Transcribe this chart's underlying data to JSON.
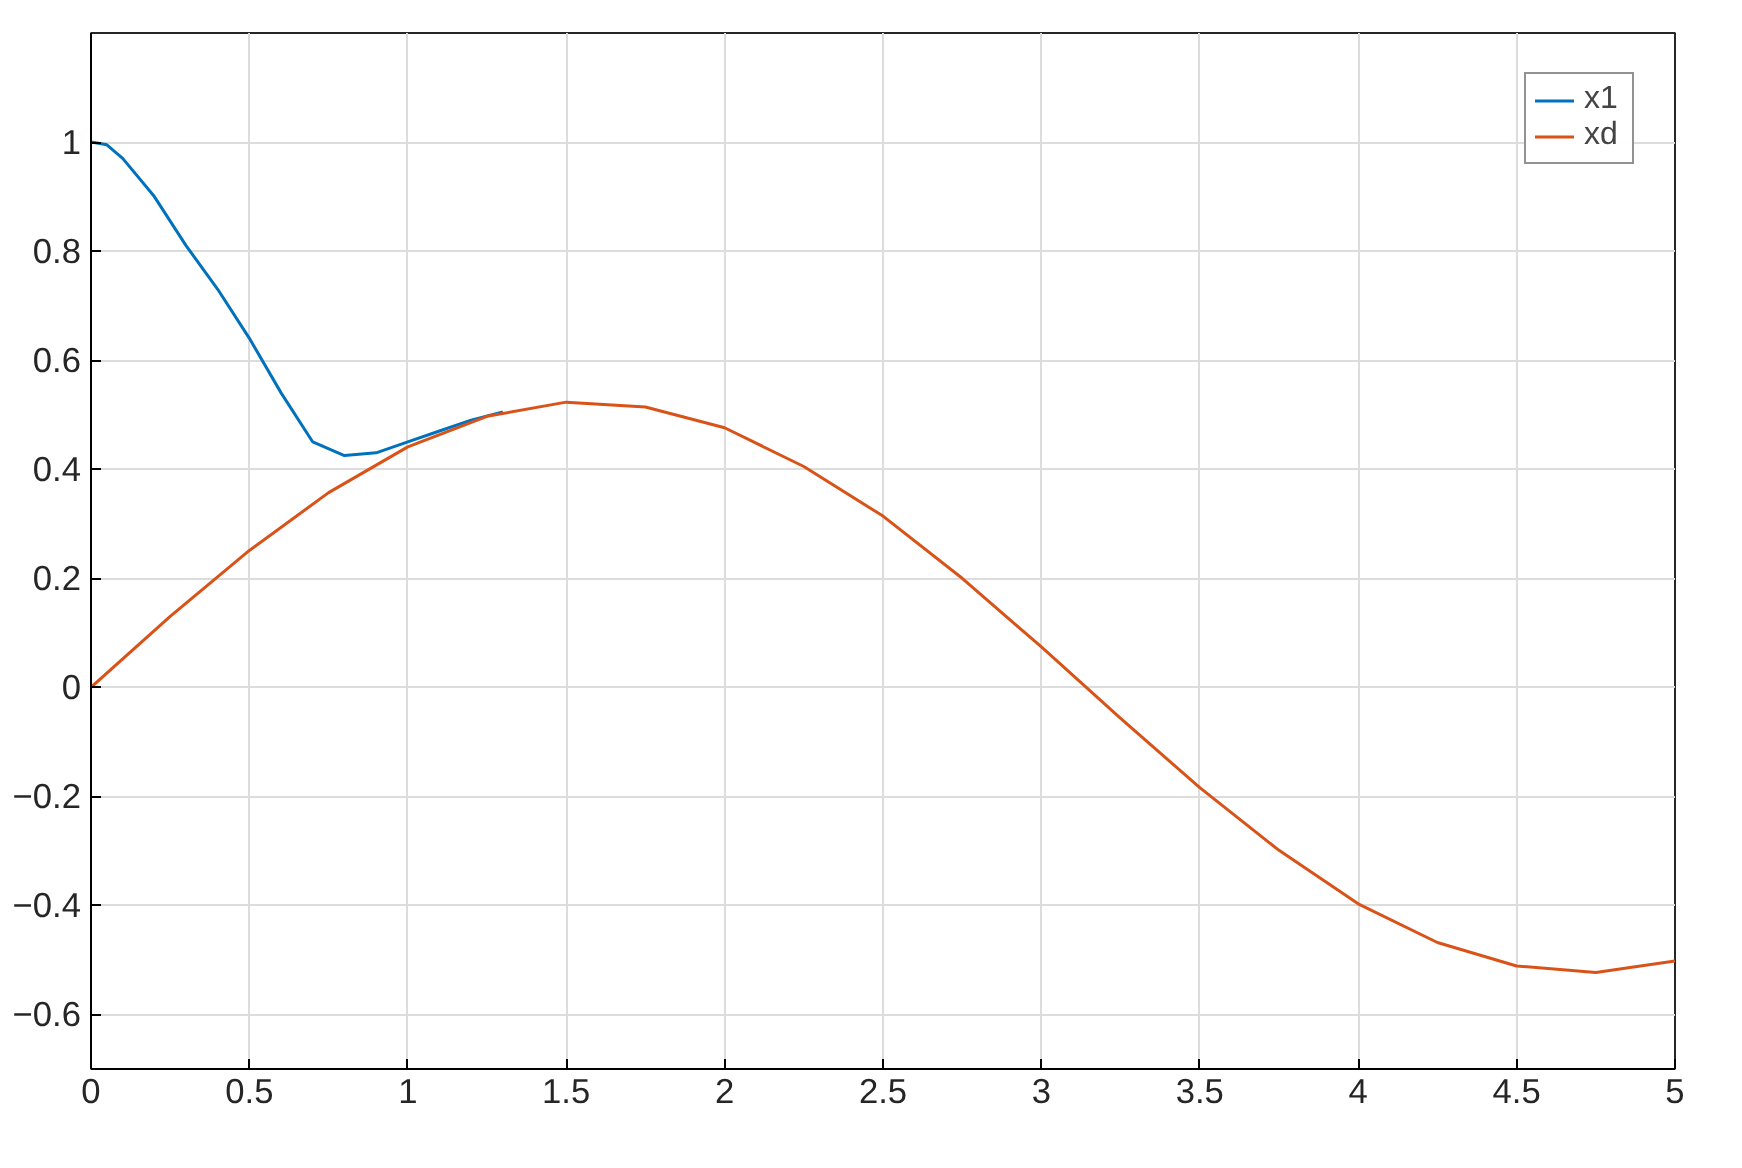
{
  "chart_data": {
    "type": "line",
    "xlim": [
      0,
      5
    ],
    "ylim": [
      -0.7,
      1.2
    ],
    "xticks": [
      0,
      0.5,
      1,
      1.5,
      2,
      2.5,
      3,
      3.5,
      4,
      4.5,
      5
    ],
    "yticks": [
      -0.6,
      -0.4,
      -0.2,
      0,
      0.2,
      0.4,
      0.6,
      0.8,
      1
    ],
    "grid": true,
    "legend": "top right",
    "line_style": "solid",
    "marker": "none",
    "series": [
      {
        "name": "x1",
        "color": "#0072bd",
        "x": [
          0,
          0.05,
          0.1,
          0.2,
          0.3,
          0.4,
          0.5,
          0.6,
          0.7,
          0.8,
          0.9,
          1.0,
          1.1,
          1.2,
          1.3
        ],
        "values": [
          1,
          0.995,
          0.97,
          0.9,
          0.81,
          0.73,
          0.64,
          0.54,
          0.45,
          0.425,
          0.43,
          0.45,
          0.47,
          0.49,
          0.505
        ]
      },
      {
        "name": "xd",
        "color": "#d95319",
        "x": [
          0,
          0.25,
          0.5,
          0.75,
          1,
          1.25,
          1.5,
          1.75,
          2,
          2.25,
          2.5,
          2.75,
          3,
          3.25,
          3.5,
          3.75,
          4,
          4.25,
          4.5,
          4.75,
          5
        ],
        "values": [
          0,
          0.13,
          0.251,
          0.357,
          0.441,
          0.497,
          0.523,
          0.514,
          0.476,
          0.405,
          0.314,
          0.2,
          0.074,
          -0.057,
          -0.184,
          -0.299,
          -0.397,
          -0.468,
          -0.511,
          -0.523,
          -0.502
        ]
      }
    ]
  }
}
